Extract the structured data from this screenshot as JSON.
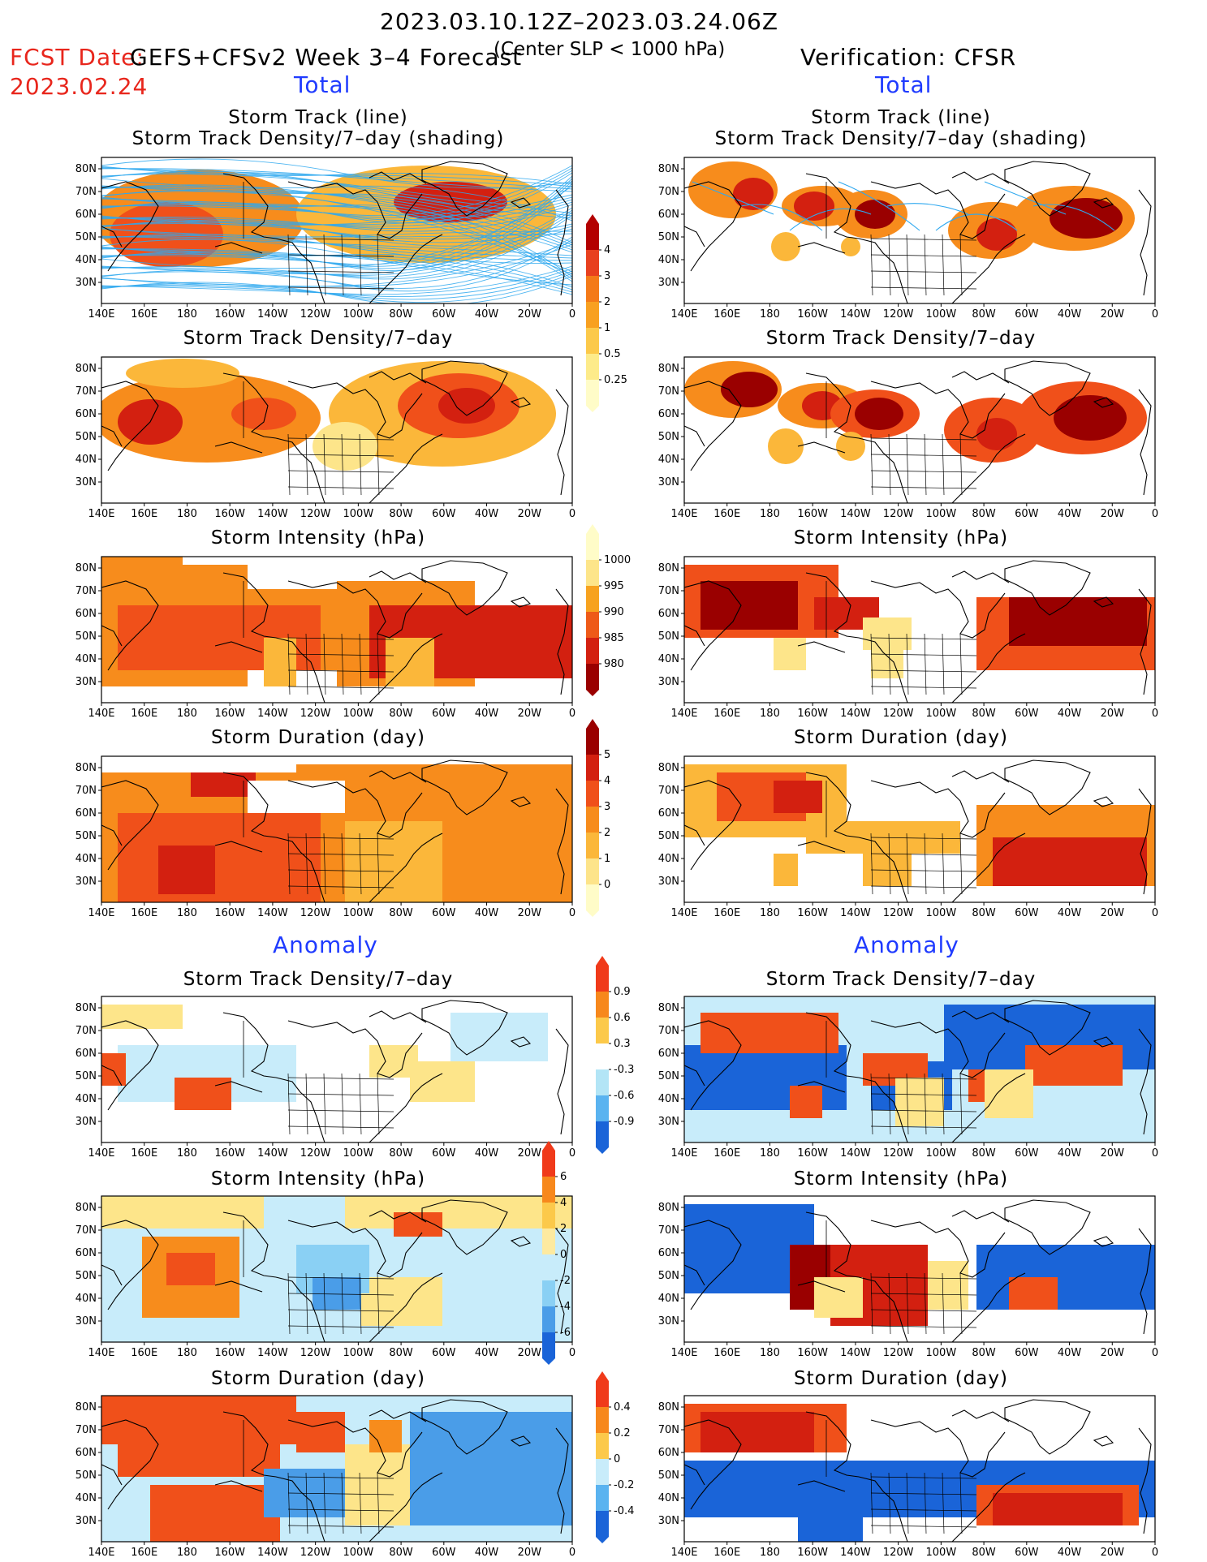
{
  "header": {
    "period": "2023.03.10.12Z–2023.03.24.06Z",
    "fcst_label": "FCST Date:",
    "fcst_date": "2023.02.24",
    "model": "GEFS+CFSv2 Week 3–4 Forecast",
    "criterion": "(Center SLP < 1000 hPa)",
    "verification": "Verification: CFSR"
  },
  "sections": {
    "total": "Total",
    "anomaly": "Anomaly"
  },
  "titles": {
    "track_line": "Storm Track (line)",
    "track_shading": "Storm Track Density/7–day (shading)",
    "density": "Storm Track Density/7–day",
    "intensity": "Storm Intensity (hPa)",
    "duration": "Storm Duration (day)"
  },
  "axes": {
    "lat_labels": [
      "80N",
      "70N",
      "60N",
      "50N",
      "40N",
      "30N"
    ],
    "lon_labels": [
      "140E",
      "160E",
      "180",
      "160W",
      "140W",
      "120W",
      "100W",
      "80W",
      "60W",
      "40W",
      "20W",
      "0"
    ]
  },
  "colorbars": {
    "density_total": {
      "labels": [
        "4",
        "3",
        "2",
        "1",
        "0.5",
        "0.25"
      ],
      "colors": [
        "#b30000",
        "#e8401e",
        "#f47a18",
        "#f8a020",
        "#fcc94a",
        "#fdeb8a",
        "#fffcc8"
      ]
    },
    "intensity_total": {
      "labels": [
        "1000",
        "995",
        "990",
        "985",
        "980"
      ],
      "colors": [
        "#fffcc8",
        "#fde58a",
        "#f7a21f",
        "#ee5a18",
        "#d32010",
        "#9a0000"
      ]
    },
    "duration_total": {
      "labels": [
        "5",
        "4",
        "3",
        "2",
        "1",
        "0"
      ],
      "colors": [
        "#9a0000",
        "#d32010",
        "#f0501a",
        "#f78c1c",
        "#fbb73a",
        "#fde48a",
        "#fffcc8"
      ]
    },
    "density_anom": {
      "labels": [
        "0.9",
        "0.6",
        "0.3",
        "-0.3",
        "-0.6",
        "-0.9"
      ],
      "colors": [
        "#f03a1a",
        "#f7881c",
        "#fcc94a",
        "#ffffff",
        "#b3e5f6",
        "#5ab3f0",
        "#1a64d8"
      ]
    },
    "intensity_anom": {
      "labels": [
        "6",
        "4",
        "2",
        "0",
        "-2",
        "-4",
        "-6"
      ],
      "colors": [
        "#f03a1a",
        "#f7881c",
        "#fcc94a",
        "#fdeaa0",
        "#c8ecfa",
        "#8ad0f4",
        "#4a9de8",
        "#1a64d8"
      ]
    },
    "duration_anom": {
      "labels": [
        "0.4",
        "0.2",
        "0",
        "-0.2",
        "-0.4"
      ],
      "colors": [
        "#f03a1a",
        "#f7881c",
        "#fcc94a",
        "#c8ecfa",
        "#5ab3f0",
        "#1a64d8"
      ]
    }
  }
}
